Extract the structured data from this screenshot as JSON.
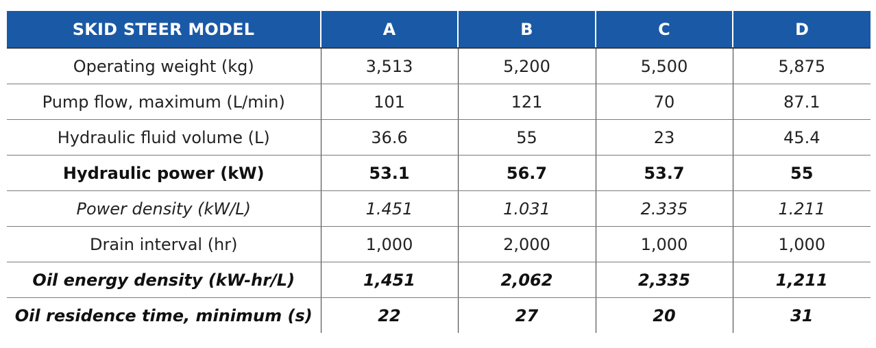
{
  "table": {
    "headers": [
      "SKID STEER MODEL",
      "A",
      "B",
      "C",
      "D"
    ],
    "rows": [
      {
        "label": "Operating weight (kg)",
        "values": [
          "3,513",
          "5,200",
          "5,500",
          "5,875"
        ],
        "style": "normal"
      },
      {
        "label": "Pump flow, maximum (L/min)",
        "values": [
          "101",
          "121",
          "70",
          "87.1"
        ],
        "style": "normal"
      },
      {
        "label": "Hydraulic fluid volume (L)",
        "values": [
          "36.6",
          "55",
          "23",
          "45.4"
        ],
        "style": "normal"
      },
      {
        "label": "Hydraulic power (kW)",
        "values": [
          "53.1",
          "56.7",
          "53.7",
          "55"
        ],
        "style": "bold"
      },
      {
        "label": "Power density (kW/L)",
        "values": [
          "1.451",
          "1.031",
          "2.335",
          "1.211"
        ],
        "style": "italic"
      },
      {
        "label": "Drain interval (hr)",
        "values": [
          "1,000",
          "2,000",
          "1,000",
          "1,000"
        ],
        "style": "normal"
      },
      {
        "label": "Oil energy density (kW-hr/L)",
        "values": [
          "1,451",
          "2,062",
          "2,335",
          "1,211"
        ],
        "style": "bold-italic"
      },
      {
        "label": "Oil residence time, minimum (s)",
        "values": [
          "22",
          "27",
          "20",
          "31"
        ],
        "style": "bold-italic"
      }
    ]
  },
  "colors": {
    "header_background": "#1a59a6",
    "header_text": "#ffffff",
    "body_text": "#222222"
  }
}
